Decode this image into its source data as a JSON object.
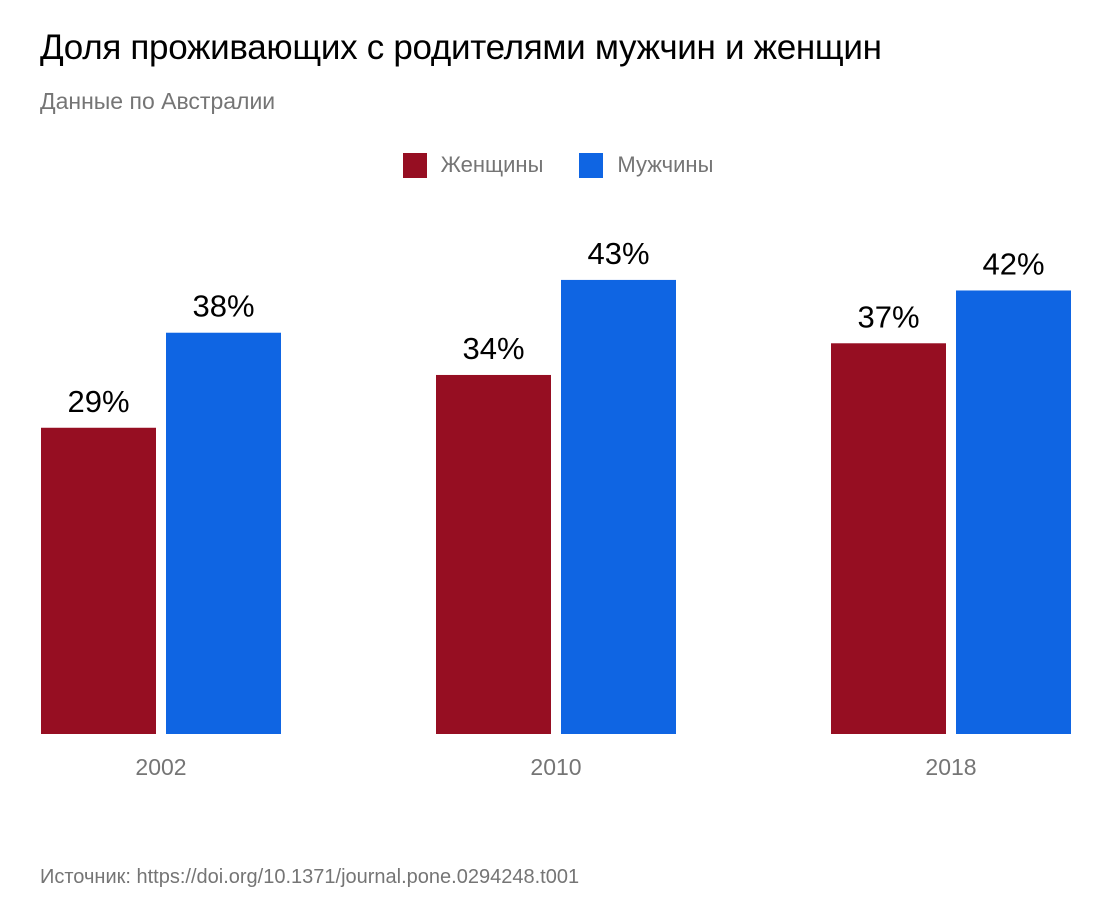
{
  "chart_data": {
    "type": "bar",
    "title": "Доля проживающих с родителями мужчин и женщин",
    "subtitle": "Данные по Австралии",
    "categories": [
      "2002",
      "2010",
      "2018"
    ],
    "series": [
      {
        "name": "Женщины",
        "color": "#960e22",
        "values": [
          29,
          34,
          37
        ],
        "labels": [
          "29%",
          "34%",
          "37%"
        ]
      },
      {
        "name": "Мужчины",
        "color": "#0f65e3",
        "values": [
          38,
          43,
          42
        ],
        "labels": [
          "38%",
          "43%",
          "42%"
        ]
      }
    ],
    "xlabel": "",
    "ylabel": "",
    "ylim": [
      0,
      43
    ],
    "grid": false,
    "legend_position": "top-center",
    "source": "Источник: https://doi.org/10.1371/journal.pone.0294248.t001"
  }
}
